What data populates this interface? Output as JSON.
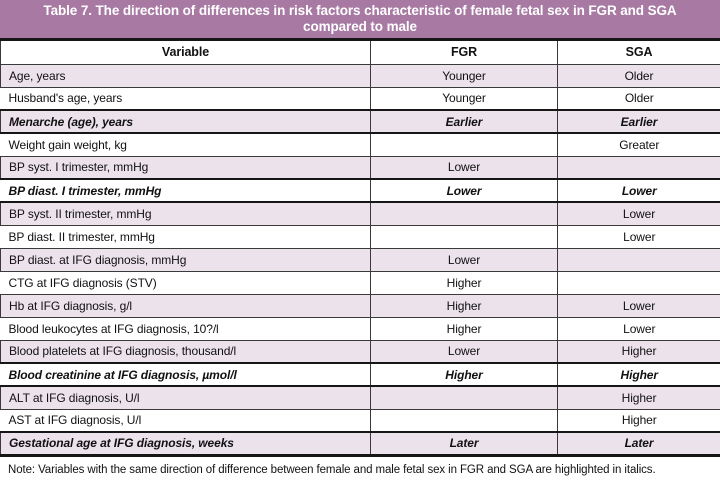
{
  "title": "Table 7. The direction of differences in risk factors characteristic of female fetal sex in FGR and SGA compared to male",
  "columns": {
    "variable": "Variable",
    "fgr": "FGR",
    "sga": "SGA"
  },
  "rows": [
    {
      "variable": "Age, years",
      "fgr": "Younger",
      "sga": "Older",
      "shaded": true,
      "emphasis": false
    },
    {
      "variable": "Husband's age, years",
      "fgr": "Younger",
      "sga": "Older",
      "shaded": false,
      "emphasis": false
    },
    {
      "variable": "Menarche (age), years",
      "fgr": "Earlier",
      "sga": "Earlier",
      "shaded": true,
      "emphasis": true
    },
    {
      "variable": "Weight gain weight, kg",
      "fgr": "",
      "sga": "Greater",
      "shaded": false,
      "emphasis": false
    },
    {
      "variable": "BP syst. I trimester, mmHg",
      "fgr": "Lower",
      "sga": "",
      "shaded": true,
      "emphasis": false
    },
    {
      "variable": "BP diast. I trimester, mmHg",
      "fgr": "Lower",
      "sga": "Lower",
      "shaded": false,
      "emphasis": true
    },
    {
      "variable": "BP syst. II trimester, mmHg",
      "fgr": "",
      "sga": "Lower",
      "shaded": true,
      "emphasis": false
    },
    {
      "variable": "BP diast. II trimester, mmHg",
      "fgr": "",
      "sga": "Lower",
      "shaded": false,
      "emphasis": false
    },
    {
      "variable": "BP diast. at IFG diagnosis, mmHg",
      "fgr": "Lower",
      "sga": "",
      "shaded": true,
      "emphasis": false
    },
    {
      "variable": "CTG at IFG diagnosis (STV)",
      "fgr": "Higher",
      "sga": "",
      "shaded": false,
      "emphasis": false
    },
    {
      "variable": "Hb at IFG diagnosis, g/l",
      "fgr": "Higher",
      "sga": "Lower",
      "shaded": true,
      "emphasis": false
    },
    {
      "variable": "Blood leukocytes at IFG diagnosis, 10?/l",
      "fgr": "Higher",
      "sga": "Lower",
      "shaded": false,
      "emphasis": false
    },
    {
      "variable": "Blood platelets at IFG diagnosis, thousand/l",
      "fgr": "Lower",
      "sga": "Higher",
      "shaded": true,
      "emphasis": false
    },
    {
      "variable": "Blood creatinine at IFG diagnosis, µmol/l",
      "fgr": "Higher",
      "sga": "Higher",
      "shaded": false,
      "emphasis": true
    },
    {
      "variable": "ALT at IFG diagnosis, U/l",
      "fgr": "",
      "sga": "Higher",
      "shaded": true,
      "emphasis": false
    },
    {
      "variable": "AST at IFG diagnosis, U/l",
      "fgr": "",
      "sga": "Higher",
      "shaded": false,
      "emphasis": false
    },
    {
      "variable": "Gestational age at IFG diagnosis, weeks",
      "fgr": "Later",
      "sga": "Later",
      "shaded": true,
      "emphasis": true
    }
  ],
  "note": "Note: Variables with the same direction of difference between female and male fetal sex in FGR and SGA are highlighted in italics.",
  "colors": {
    "title_bg": "#a87aa3",
    "row_shade": "#ece2ec",
    "border": "#3a3a3a",
    "heavy_border": "#161616"
  }
}
